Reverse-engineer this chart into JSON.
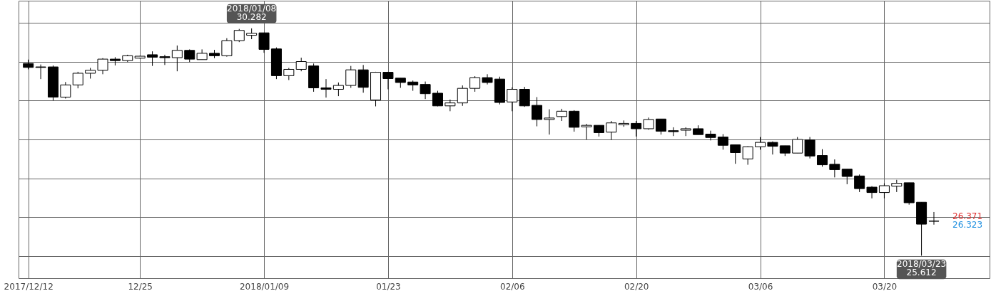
{
  "chart_data": {
    "type": "candlestick",
    "categories": [
      "2017/12/12",
      null,
      null,
      null,
      null,
      null,
      null,
      null,
      null,
      "12/25",
      null,
      null,
      null,
      null,
      null,
      null,
      null,
      null,
      null,
      "2018/01/09",
      null,
      null,
      null,
      null,
      null,
      null,
      null,
      null,
      null,
      "01/23",
      null,
      null,
      null,
      null,
      null,
      null,
      null,
      null,
      null,
      "02/06",
      null,
      null,
      null,
      null,
      null,
      null,
      null,
      null,
      null,
      "02/20",
      null,
      null,
      null,
      null,
      null,
      null,
      null,
      null,
      null,
      "03/06",
      null,
      null,
      null,
      null,
      null,
      null,
      null,
      null,
      null,
      "03/20",
      null,
      null,
      null,
      null
    ],
    "ohlc": [
      [
        29.56,
        29.64,
        29.44,
        29.48
      ],
      [
        29.49,
        29.54,
        29.24,
        29.48
      ],
      [
        29.49,
        29.52,
        28.8,
        28.87
      ],
      [
        28.87,
        29.18,
        28.84,
        29.12
      ],
      [
        29.12,
        29.39,
        29.05,
        29.36
      ],
      [
        29.36,
        29.47,
        29.25,
        29.42
      ],
      [
        29.42,
        29.67,
        29.34,
        29.65
      ],
      [
        29.65,
        29.69,
        29.52,
        29.62
      ],
      [
        29.62,
        29.74,
        29.59,
        29.72
      ],
      [
        29.67,
        29.72,
        29.66,
        29.71
      ],
      [
        29.74,
        29.81,
        29.51,
        29.69
      ],
      [
        29.7,
        29.74,
        29.53,
        29.68
      ],
      [
        29.68,
        29.93,
        29.4,
        29.83
      ],
      [
        29.83,
        29.85,
        29.59,
        29.65
      ],
      [
        29.64,
        29.85,
        29.64,
        29.77
      ],
      [
        29.77,
        29.84,
        29.67,
        29.72
      ],
      [
        29.72,
        30.08,
        29.7,
        30.03
      ],
      [
        30.03,
        30.27,
        30.0,
        30.24
      ],
      [
        30.14,
        30.282,
        30.06,
        30.18
      ],
      [
        30.19,
        30.19,
        29.78,
        29.85
      ],
      [
        29.86,
        29.89,
        29.24,
        29.31
      ],
      [
        29.31,
        29.47,
        29.22,
        29.44
      ],
      [
        29.44,
        29.68,
        29.4,
        29.6
      ],
      [
        29.51,
        29.56,
        28.98,
        29.06
      ],
      [
        29.06,
        29.24,
        28.86,
        29.03
      ],
      [
        29.03,
        29.17,
        28.89,
        29.11
      ],
      [
        29.11,
        29.51,
        29.06,
        29.43
      ],
      [
        29.43,
        29.53,
        28.96,
        29.07
      ],
      [
        28.81,
        29.39,
        28.68,
        29.38
      ],
      [
        29.38,
        29.39,
        29.03,
        29.25
      ],
      [
        29.26,
        29.26,
        29.06,
        29.17
      ],
      [
        29.18,
        29.21,
        29.0,
        29.12
      ],
      [
        29.13,
        29.19,
        28.83,
        28.94
      ],
      [
        28.95,
        29.0,
        28.68,
        28.69
      ],
      [
        28.69,
        28.82,
        28.58,
        28.75
      ],
      [
        28.75,
        29.11,
        28.69,
        29.05
      ],
      [
        29.05,
        29.3,
        28.98,
        29.27
      ],
      [
        29.27,
        29.34,
        29.13,
        29.17
      ],
      [
        29.24,
        29.29,
        28.72,
        28.76
      ],
      [
        28.77,
        29.07,
        28.58,
        29.03
      ],
      [
        29.03,
        29.08,
        28.67,
        28.69
      ],
      [
        28.7,
        28.87,
        28.27,
        28.41
      ],
      [
        28.41,
        28.62,
        28.1,
        28.44
      ],
      [
        28.47,
        28.63,
        28.38,
        28.58
      ],
      [
        28.58,
        28.6,
        28.16,
        28.25
      ],
      [
        28.26,
        28.32,
        28.0,
        28.29
      ],
      [
        28.29,
        28.29,
        28.06,
        28.14
      ],
      [
        28.15,
        28.38,
        27.99,
        28.34
      ],
      [
        28.3,
        28.39,
        28.26,
        28.33
      ],
      [
        28.33,
        28.38,
        28.06,
        28.22
      ],
      [
        28.22,
        28.45,
        28.2,
        28.41
      ],
      [
        28.42,
        28.42,
        28.1,
        28.17
      ],
      [
        28.18,
        28.25,
        28.07,
        28.16
      ],
      [
        28.19,
        28.25,
        28.07,
        28.22
      ],
      [
        28.22,
        28.29,
        28.1,
        28.1
      ],
      [
        28.11,
        28.18,
        27.98,
        28.04
      ],
      [
        28.05,
        28.11,
        27.79,
        27.88
      ],
      [
        27.89,
        27.89,
        27.5,
        27.73
      ],
      [
        27.6,
        27.86,
        27.48,
        27.85
      ],
      [
        27.85,
        28.05,
        27.79,
        27.94
      ],
      [
        27.94,
        27.96,
        27.69,
        27.86
      ],
      [
        27.87,
        27.87,
        27.66,
        27.72
      ],
      [
        27.72,
        28.05,
        27.72,
        28.0
      ],
      [
        27.99,
        28.05,
        27.61,
        27.66
      ],
      [
        27.67,
        27.8,
        27.44,
        27.48
      ],
      [
        27.49,
        27.59,
        27.22,
        27.38
      ],
      [
        27.39,
        27.39,
        27.08,
        27.24
      ],
      [
        27.25,
        27.28,
        26.92,
        26.99
      ],
      [
        27.02,
        27.04,
        26.79,
        26.91
      ],
      [
        26.91,
        27.1,
        26.79,
        27.05
      ],
      [
        27.04,
        27.17,
        26.92,
        27.1
      ],
      [
        27.11,
        27.11,
        26.66,
        26.7
      ],
      [
        26.71,
        26.71,
        25.612,
        26.26
      ],
      [
        26.32,
        26.51,
        26.25,
        26.323
      ]
    ],
    "ylim": [
      25.15,
      30.85
    ],
    "yticks": [
      {
        "value": 25.6,
        "label": null
      },
      {
        "value": 26.4,
        "label": null
      },
      {
        "value": 27.2,
        "label": null
      },
      {
        "value": 28.0,
        "label": null
      },
      {
        "value": 28.8,
        "label": null
      },
      {
        "value": 29.6,
        "label": null
      },
      {
        "value": 30.4,
        "label": null
      }
    ],
    "grid": true,
    "tick_labels": "x",
    "annotations": [
      {
        "text": "2018/01/08\n30.282",
        "y": 30.282
      },
      {
        "text": "2018/03/23\n25.612",
        "y": 25.612
      },
      "26.371",
      "26.323"
    ]
  }
}
